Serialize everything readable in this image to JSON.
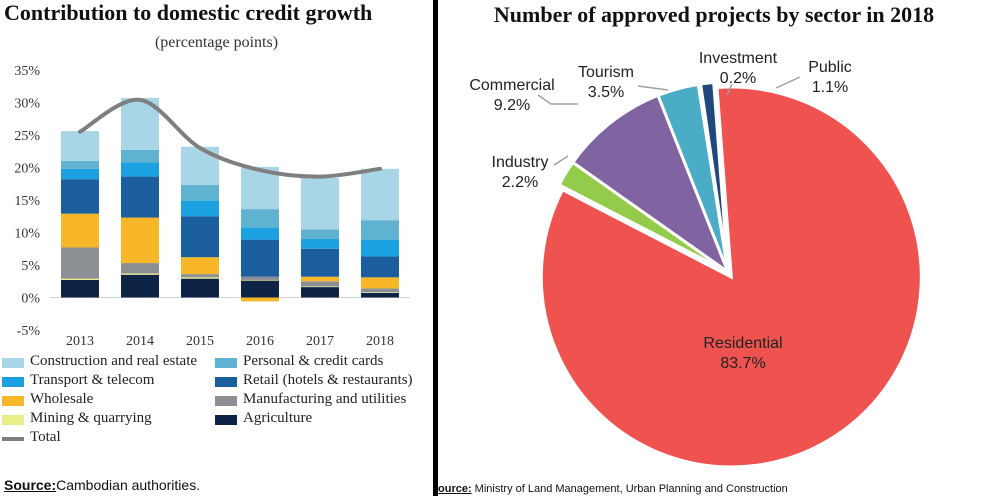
{
  "left": {
    "title": "Contribution to domestic credit growth",
    "subtitle": "(percentage points)",
    "source_key": "Source:",
    "source_text": "Cambodian authorities."
  },
  "right": {
    "title": "Number of approved projects by sector in 2018",
    "source_key": "ource:",
    "source_text": " Ministry of Land Management, Urban Planning and Construction"
  },
  "chart_data": [
    {
      "type": "bar",
      "stacked": true,
      "title": "Contribution to domestic credit growth",
      "subtitle": "(percentage points)",
      "categories": [
        "2013",
        "2014",
        "2015",
        "2016",
        "2017",
        "2018"
      ],
      "ylim": [
        -5,
        35
      ],
      "yticks": [
        -5,
        0,
        5,
        10,
        15,
        20,
        25,
        30,
        35
      ],
      "ytick_labels": [
        "-5%",
        "0%",
        "5%",
        "10%",
        "15%",
        "20%",
        "25%",
        "30%",
        "35%"
      ],
      "series": [
        {
          "name": "Agriculture",
          "color": "#0d2447",
          "values": [
            2.7,
            3.5,
            2.9,
            2.6,
            1.6,
            0.7
          ]
        },
        {
          "name": "Mining & quarrying",
          "color": "#e8ee8a",
          "values": [
            0.2,
            0.2,
            0.2,
            0.1,
            0.1,
            0.1
          ]
        },
        {
          "name": "Manufacturing and utilities",
          "color": "#8c9094",
          "values": [
            4.8,
            1.6,
            0.5,
            0.5,
            0.8,
            0.6
          ]
        },
        {
          "name": "Wholesale",
          "color": "#f7b728",
          "values": [
            5.2,
            7.0,
            2.6,
            -0.6,
            0.7,
            1.7
          ]
        },
        {
          "name": "Retail (hotels & restaurants)",
          "color": "#1b5e9e",
          "values": [
            5.3,
            6.3,
            6.3,
            5.7,
            4.3,
            3.2
          ]
        },
        {
          "name": "Transport & telecom",
          "color": "#1ba0e0",
          "values": [
            1.6,
            2.2,
            2.4,
            1.9,
            1.5,
            2.6
          ]
        },
        {
          "name": "Personal & credit cards",
          "color": "#5fb3d0",
          "values": [
            1.2,
            1.9,
            2.4,
            2.8,
            1.5,
            3.0
          ]
        },
        {
          "name": "Construction and real estate",
          "color": "#a9d6e6",
          "values": [
            4.6,
            8.0,
            5.9,
            6.5,
            7.9,
            7.9
          ]
        }
      ],
      "total": {
        "name": "Total",
        "color": "#7f7f7f",
        "values": [
          25.5,
          30.4,
          23.0,
          19.6,
          18.6,
          19.8
        ]
      },
      "legend": [
        "Construction and real estate",
        "Personal & credit cards",
        "Transport & telecom",
        "Retail (hotels & restaurants)",
        "Wholesale",
        "Manufacturing and utilities",
        "Mining & quarrying",
        "Agriculture",
        "Total"
      ]
    },
    {
      "type": "pie",
      "title": "Number of approved projects by sector in 2018",
      "slices": [
        {
          "name": "Residential",
          "pct_label": "83.7%",
          "value": 83.7,
          "color": "#ee5350"
        },
        {
          "name": "Industry",
          "pct_label": "2.2%",
          "value": 2.2,
          "color": "#92cc4a"
        },
        {
          "name": "Commercial",
          "pct_label": "9.2%",
          "value": 9.2,
          "color": "#8064a2"
        },
        {
          "name": "Tourism",
          "pct_label": "3.5%",
          "value": 3.5,
          "color": "#4bacc6"
        },
        {
          "name": "Investment",
          "pct_label": "0.2%",
          "value": 0.2,
          "color": "#f79646"
        },
        {
          "name": "Public",
          "pct_label": "1.1%",
          "value": 1.1,
          "color": "#1f497d"
        }
      ]
    }
  ]
}
